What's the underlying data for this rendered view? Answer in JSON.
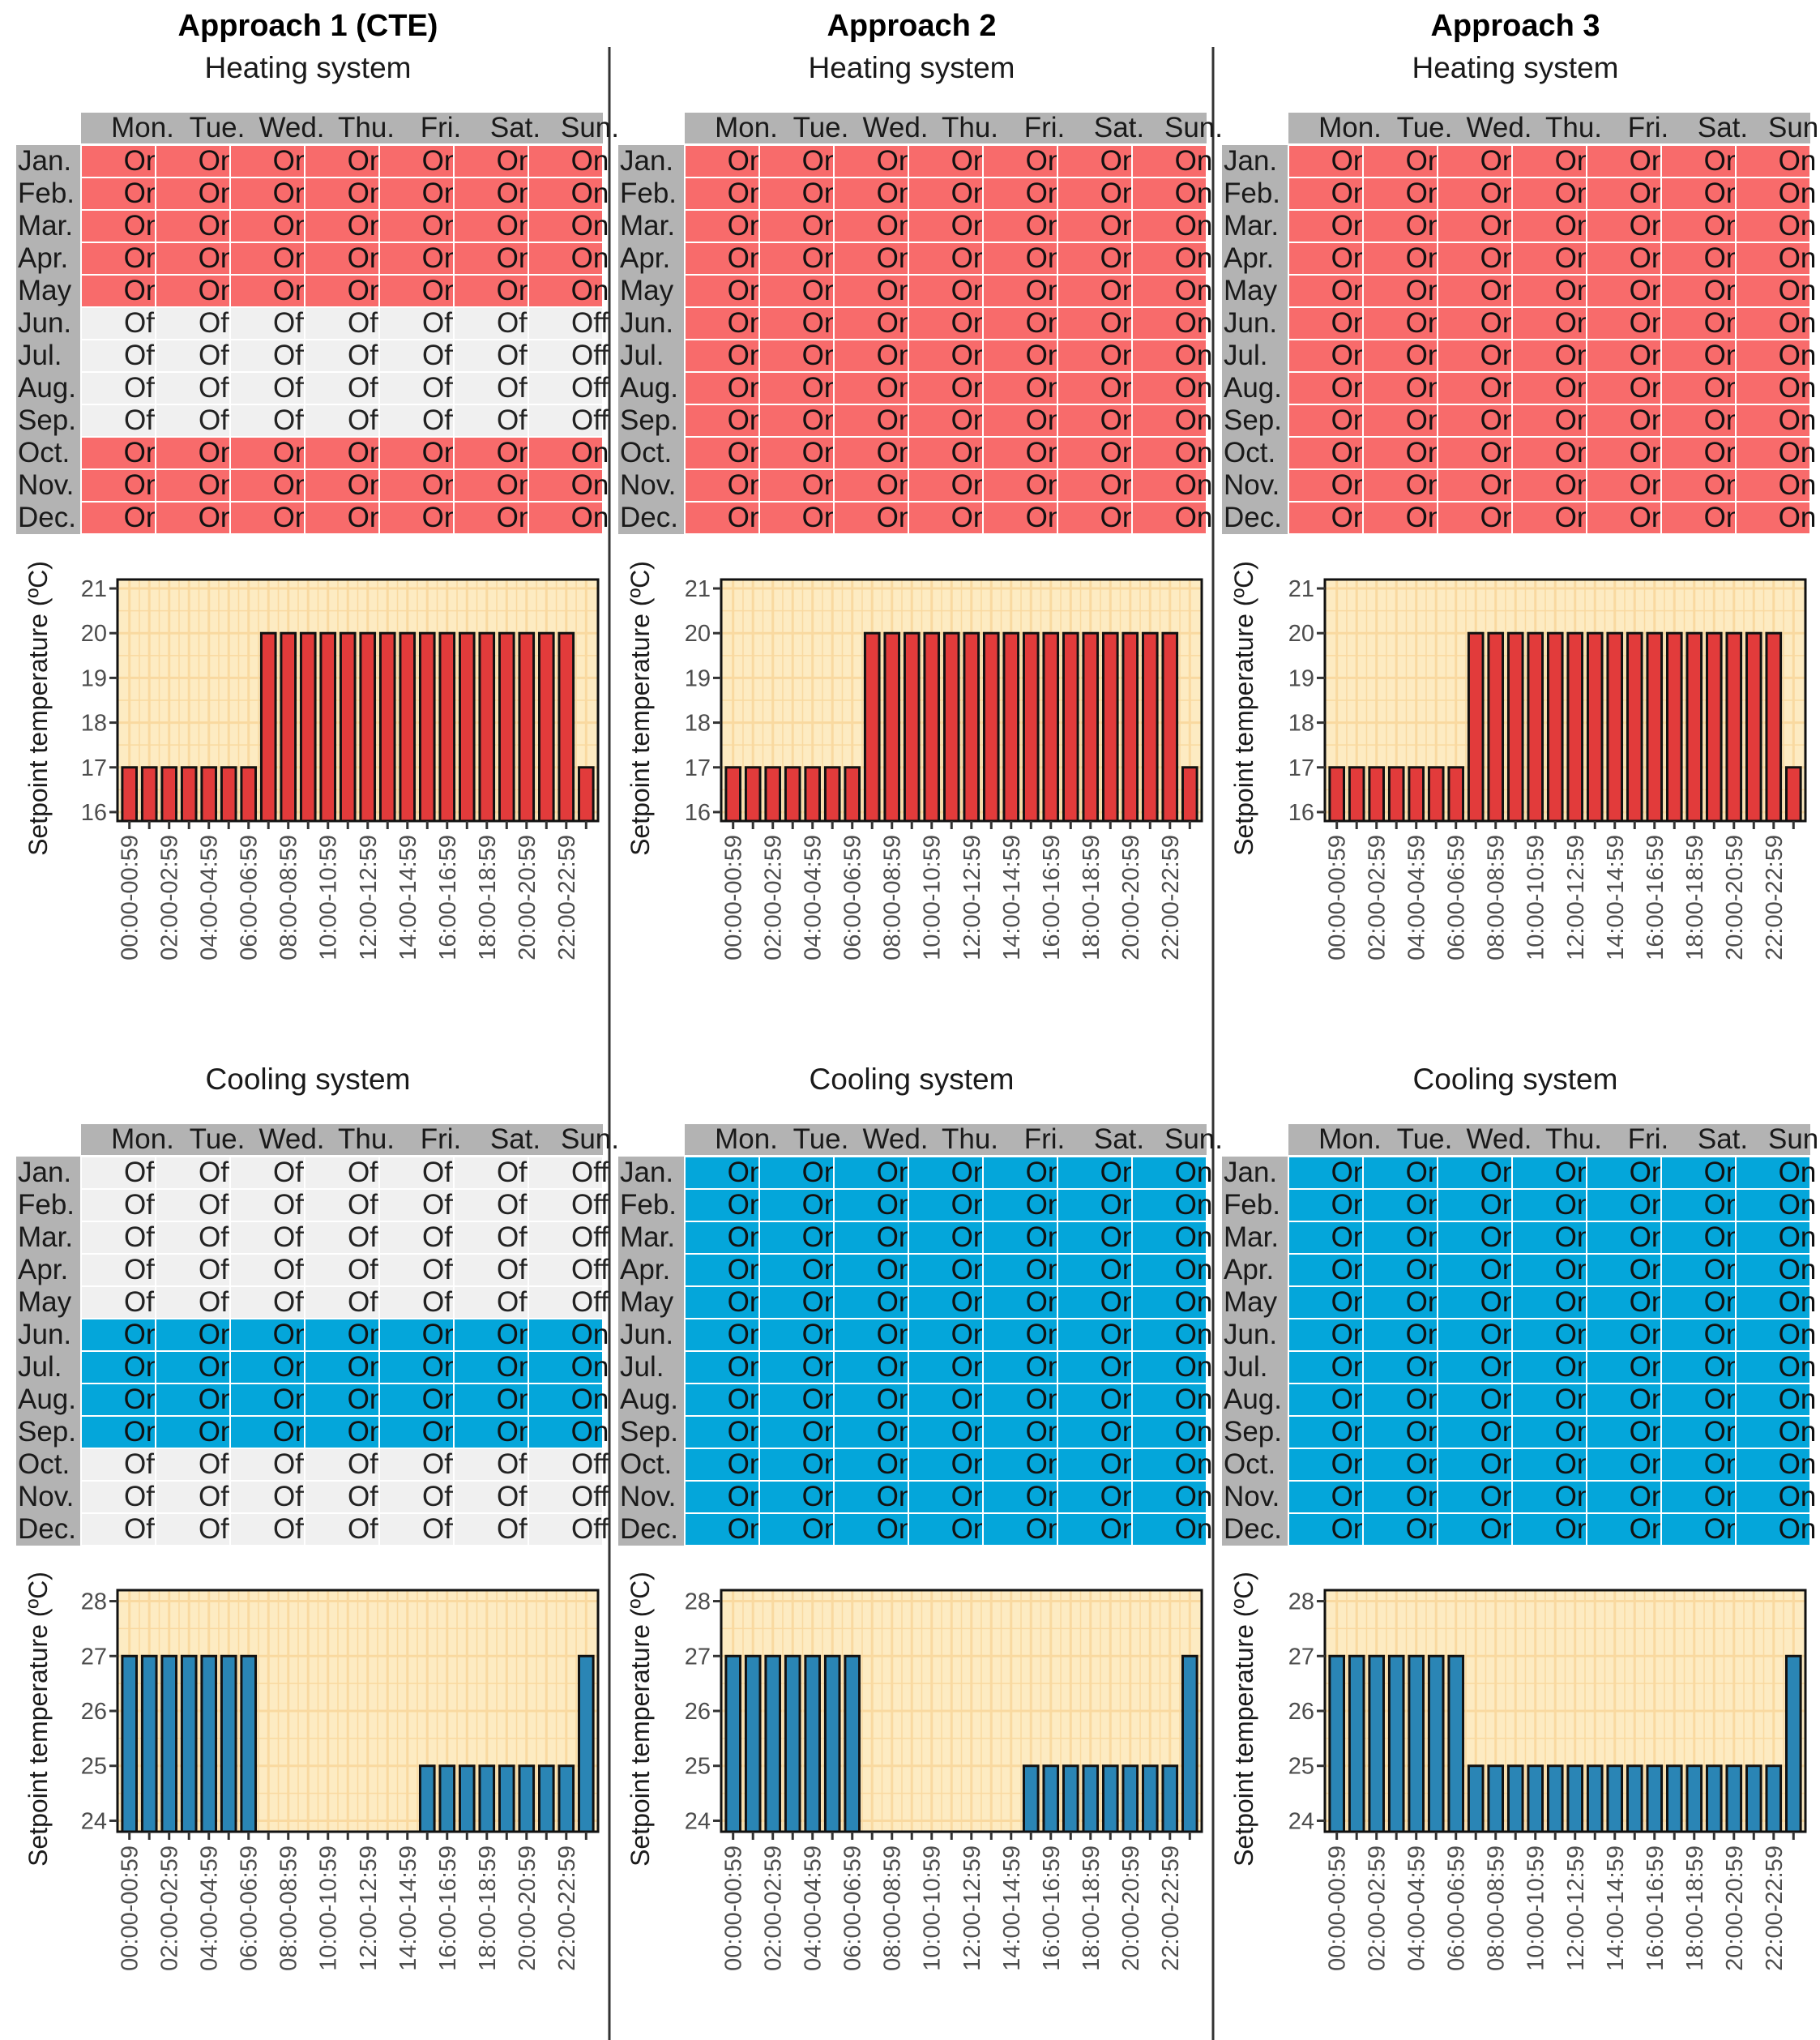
{
  "labels": {
    "days": [
      "Mon.",
      "Tue.",
      "Wed.",
      "Thu.",
      "Fri.",
      "Sat.",
      "Sun."
    ],
    "months": [
      "Jan.",
      "Feb.",
      "Mar.",
      "Apr.",
      "May",
      "Jun.",
      "Jul.",
      "Aug.",
      "Sep.",
      "Oct.",
      "Nov.",
      "Dec."
    ],
    "on": "On",
    "off": "Off"
  },
  "colors": {
    "heat_on": "#f86b6b",
    "cool_on": "#04a6da",
    "off": "#f0f0f0",
    "header": "#b3b3b3",
    "plot_bg": "#fdebc2",
    "grid": "#f9d9a0",
    "heat_bar": "#e23b3b",
    "cool_bar": "#2a85b5",
    "divider": "#333333"
  },
  "chart_data": [
    {
      "type": "bar",
      "title": "Approach 1 (CTE)",
      "subtitle": "Heating system",
      "schedule_on_months": [
        "Jan.",
        "Feb.",
        "Mar.",
        "Apr.",
        "May",
        "Oct.",
        "Nov.",
        "Dec."
      ],
      "categories": [
        "00:00-00:59",
        "01:00-01:59",
        "02:00-02:59",
        "03:00-03:59",
        "04:00-04:59",
        "05:00-05:59",
        "06:00-06:59",
        "07:00-07:59",
        "08:00-08:59",
        "09:00-09:59",
        "10:00-10:59",
        "11:00-11:59",
        "12:00-12:59",
        "13:00-13:59",
        "14:00-14:59",
        "15:00-15:59",
        "16:00-16:59",
        "17:00-17:59",
        "18:00-18:59",
        "19:00-19:59",
        "20:00-20:59",
        "21:00-21:59",
        "22:00-22:59",
        "23:00-23:59"
      ],
      "tick_labels": [
        "00:00-00:59",
        "02:00-02:59",
        "04:00-04:59",
        "06:00-06:59",
        "08:00-08:59",
        "10:00-10:59",
        "12:00-12:59",
        "14:00-14:59",
        "16:00-16:59",
        "18:00-18:59",
        "20:00-20:59",
        "22:00-22:59"
      ],
      "values": [
        17,
        17,
        17,
        17,
        17,
        17,
        17,
        20,
        20,
        20,
        20,
        20,
        20,
        20,
        20,
        20,
        20,
        20,
        20,
        20,
        20,
        20,
        20,
        17
      ],
      "ylabel": "Setpoint temperature (ºC)",
      "yticks": [
        16,
        17,
        18,
        19,
        20,
        21
      ],
      "ylim": [
        15.8,
        21.2
      ]
    },
    {
      "type": "bar",
      "title": "Approach 2",
      "subtitle": "Heating system",
      "schedule_on_months": [
        "Jan.",
        "Feb.",
        "Mar.",
        "Apr.",
        "May",
        "Jun.",
        "Jul.",
        "Aug.",
        "Sep.",
        "Oct.",
        "Nov.",
        "Dec."
      ],
      "categories": [
        "00:00-00:59",
        "01:00-01:59",
        "02:00-02:59",
        "03:00-03:59",
        "04:00-04:59",
        "05:00-05:59",
        "06:00-06:59",
        "07:00-07:59",
        "08:00-08:59",
        "09:00-09:59",
        "10:00-10:59",
        "11:00-11:59",
        "12:00-12:59",
        "13:00-13:59",
        "14:00-14:59",
        "15:00-15:59",
        "16:00-16:59",
        "17:00-17:59",
        "18:00-18:59",
        "19:00-19:59",
        "20:00-20:59",
        "21:00-21:59",
        "22:00-22:59",
        "23:00-23:59"
      ],
      "tick_labels": [
        "00:00-00:59",
        "02:00-02:59",
        "04:00-04:59",
        "06:00-06:59",
        "08:00-08:59",
        "10:00-10:59",
        "12:00-12:59",
        "14:00-14:59",
        "16:00-16:59",
        "18:00-18:59",
        "20:00-20:59",
        "22:00-22:59"
      ],
      "values": [
        17,
        17,
        17,
        17,
        17,
        17,
        17,
        20,
        20,
        20,
        20,
        20,
        20,
        20,
        20,
        20,
        20,
        20,
        20,
        20,
        20,
        20,
        20,
        17
      ],
      "ylabel": "Setpoint temperature (ºC)",
      "yticks": [
        16,
        17,
        18,
        19,
        20,
        21
      ],
      "ylim": [
        15.8,
        21.2
      ]
    },
    {
      "type": "bar",
      "title": "Approach 3",
      "subtitle": "Heating system",
      "schedule_on_months": [
        "Jan.",
        "Feb.",
        "Mar.",
        "Apr.",
        "May",
        "Jun.",
        "Jul.",
        "Aug.",
        "Sep.",
        "Oct.",
        "Nov.",
        "Dec."
      ],
      "categories": [
        "00:00-00:59",
        "01:00-01:59",
        "02:00-02:59",
        "03:00-03:59",
        "04:00-04:59",
        "05:00-05:59",
        "06:00-06:59",
        "07:00-07:59",
        "08:00-08:59",
        "09:00-09:59",
        "10:00-10:59",
        "11:00-11:59",
        "12:00-12:59",
        "13:00-13:59",
        "14:00-14:59",
        "15:00-15:59",
        "16:00-16:59",
        "17:00-17:59",
        "18:00-18:59",
        "19:00-19:59",
        "20:00-20:59",
        "21:00-21:59",
        "22:00-22:59",
        "23:00-23:59"
      ],
      "tick_labels": [
        "00:00-00:59",
        "02:00-02:59",
        "04:00-04:59",
        "06:00-06:59",
        "08:00-08:59",
        "10:00-10:59",
        "12:00-12:59",
        "14:00-14:59",
        "16:00-16:59",
        "18:00-18:59",
        "20:00-20:59",
        "22:00-22:59"
      ],
      "values": [
        17,
        17,
        17,
        17,
        17,
        17,
        17,
        20,
        20,
        20,
        20,
        20,
        20,
        20,
        20,
        20,
        20,
        20,
        20,
        20,
        20,
        20,
        20,
        17
      ],
      "ylabel": "Setpoint temperature (ºC)",
      "yticks": [
        16,
        17,
        18,
        19,
        20,
        21
      ],
      "ylim": [
        15.8,
        21.2
      ]
    },
    {
      "type": "bar",
      "subtitle": "Cooling system",
      "schedule_on_months": [
        "Jun.",
        "Jul.",
        "Aug.",
        "Sep."
      ],
      "categories": [
        "00:00-00:59",
        "01:00-01:59",
        "02:00-02:59",
        "03:00-03:59",
        "04:00-04:59",
        "05:00-05:59",
        "06:00-06:59",
        "07:00-07:59",
        "08:00-08:59",
        "09:00-09:59",
        "10:00-10:59",
        "11:00-11:59",
        "12:00-12:59",
        "13:00-13:59",
        "14:00-14:59",
        "15:00-15:59",
        "16:00-16:59",
        "17:00-17:59",
        "18:00-18:59",
        "19:00-19:59",
        "20:00-20:59",
        "21:00-21:59",
        "22:00-22:59",
        "23:00-23:59"
      ],
      "tick_labels": [
        "00:00-00:59",
        "02:00-02:59",
        "04:00-04:59",
        "06:00-06:59",
        "08:00-08:59",
        "10:00-10:59",
        "12:00-12:59",
        "14:00-14:59",
        "16:00-16:59",
        "18:00-18:59",
        "20:00-20:59",
        "22:00-22:59"
      ],
      "values": [
        27,
        27,
        27,
        27,
        27,
        27,
        27,
        null,
        null,
        null,
        null,
        null,
        null,
        null,
        null,
        25,
        25,
        25,
        25,
        25,
        25,
        25,
        25,
        27
      ],
      "ylabel": "Setpoint temperature (ºC)",
      "yticks": [
        24,
        25,
        26,
        27,
        28
      ],
      "ylim": [
        23.8,
        28.2
      ]
    },
    {
      "type": "bar",
      "subtitle": "Cooling system",
      "schedule_on_months": [
        "Jan.",
        "Feb.",
        "Mar.",
        "Apr.",
        "May",
        "Jun.",
        "Jul.",
        "Aug.",
        "Sep.",
        "Oct.",
        "Nov.",
        "Dec."
      ],
      "categories": [
        "00:00-00:59",
        "01:00-01:59",
        "02:00-02:59",
        "03:00-03:59",
        "04:00-04:59",
        "05:00-05:59",
        "06:00-06:59",
        "07:00-07:59",
        "08:00-08:59",
        "09:00-09:59",
        "10:00-10:59",
        "11:00-11:59",
        "12:00-12:59",
        "13:00-13:59",
        "14:00-14:59",
        "15:00-15:59",
        "16:00-16:59",
        "17:00-17:59",
        "18:00-18:59",
        "19:00-19:59",
        "20:00-20:59",
        "21:00-21:59",
        "22:00-22:59",
        "23:00-23:59"
      ],
      "tick_labels": [
        "00:00-00:59",
        "02:00-02:59",
        "04:00-04:59",
        "06:00-06:59",
        "08:00-08:59",
        "10:00-10:59",
        "12:00-12:59",
        "14:00-14:59",
        "16:00-16:59",
        "18:00-18:59",
        "20:00-20:59",
        "22:00-22:59"
      ],
      "values": [
        27,
        27,
        27,
        27,
        27,
        27,
        27,
        null,
        null,
        null,
        null,
        null,
        null,
        null,
        null,
        25,
        25,
        25,
        25,
        25,
        25,
        25,
        25,
        27
      ],
      "ylabel": "Setpoint temperature (ºC)",
      "yticks": [
        24,
        25,
        26,
        27,
        28
      ],
      "ylim": [
        23.8,
        28.2
      ]
    },
    {
      "type": "bar",
      "subtitle": "Cooling system",
      "schedule_on_months": [
        "Jan.",
        "Feb.",
        "Mar.",
        "Apr.",
        "May",
        "Jun.",
        "Jul.",
        "Aug.",
        "Sep.",
        "Oct.",
        "Nov.",
        "Dec."
      ],
      "categories": [
        "00:00-00:59",
        "01:00-01:59",
        "02:00-02:59",
        "03:00-03:59",
        "04:00-04:59",
        "05:00-05:59",
        "06:00-06:59",
        "07:00-07:59",
        "08:00-08:59",
        "09:00-09:59",
        "10:00-10:59",
        "11:00-11:59",
        "12:00-12:59",
        "13:00-13:59",
        "14:00-14:59",
        "15:00-15:59",
        "16:00-16:59",
        "17:00-17:59",
        "18:00-18:59",
        "19:00-19:59",
        "20:00-20:59",
        "21:00-21:59",
        "22:00-22:59",
        "23:00-23:59"
      ],
      "tick_labels": [
        "00:00-00:59",
        "02:00-02:59",
        "04:00-04:59",
        "06:00-06:59",
        "08:00-08:59",
        "10:00-10:59",
        "12:00-12:59",
        "14:00-14:59",
        "16:00-16:59",
        "18:00-18:59",
        "20:00-20:59",
        "22:00-22:59"
      ],
      "values": [
        27,
        27,
        27,
        27,
        27,
        27,
        27,
        25,
        25,
        25,
        25,
        25,
        25,
        25,
        25,
        25,
        25,
        25,
        25,
        25,
        25,
        25,
        25,
        27
      ],
      "ylabel": "Setpoint temperature (ºC)",
      "yticks": [
        24,
        25,
        26,
        27,
        28
      ],
      "ylim": [
        23.8,
        28.2
      ]
    }
  ]
}
